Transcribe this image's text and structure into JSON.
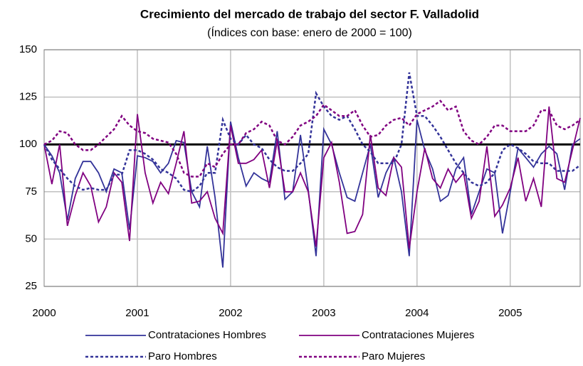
{
  "chart_data": {
    "type": "line",
    "title": "Crecimiento del mercado de trabajo del sector F. Valladolid",
    "subtitle": "(Índices con base: enero de 2000 = 100)",
    "categories": [
      "2000",
      null,
      null,
      null,
      null,
      null,
      null,
      null,
      null,
      null,
      null,
      null,
      "2001",
      null,
      null,
      null,
      null,
      null,
      null,
      null,
      null,
      null,
      null,
      null,
      "2002",
      null,
      null,
      null,
      null,
      null,
      null,
      null,
      null,
      null,
      null,
      null,
      "2003",
      null,
      null,
      null,
      null,
      null,
      null,
      null,
      null,
      null,
      null,
      null,
      "2004",
      null,
      null,
      null,
      null,
      null,
      null,
      null,
      null,
      null,
      null,
      null,
      "2005",
      null,
      null,
      null,
      null,
      null,
      null,
      null,
      null,
      null
    ],
    "series": [
      {
        "name": "Contrataciones Hombres",
        "color": "#333399",
        "dash": "solid",
        "values": [
          100,
          94,
          85,
          60,
          82,
          91,
          91,
          85,
          75,
          87,
          85,
          55,
          94,
          93,
          91,
          85,
          90,
          102,
          101,
          75,
          67,
          99,
          72,
          35,
          112,
          93,
          78,
          85,
          82,
          80,
          107,
          71,
          75,
          105,
          76,
          41,
          108,
          100,
          85,
          72,
          70,
          85,
          100,
          72,
          85,
          93,
          75,
          41,
          113,
          97,
          87,
          70,
          73,
          87,
          93,
          63,
          75,
          87,
          85,
          53,
          75,
          98,
          93,
          88,
          95,
          99,
          95,
          76,
          100,
          103
        ]
      },
      {
        "name": "Contrataciones Mujeres",
        "color": "#800080",
        "dash": "solid",
        "values": [
          100,
          79,
          100,
          57,
          73,
          85,
          78,
          59,
          67,
          85,
          80,
          49,
          116,
          85,
          69,
          80,
          74,
          90,
          107,
          69,
          70,
          75,
          61,
          53,
          110,
          90,
          90,
          92,
          97,
          77,
          102,
          75,
          75,
          85,
          75,
          46,
          93,
          101,
          80,
          53,
          54,
          63,
          105,
          77,
          73,
          93,
          88,
          45,
          75,
          98,
          82,
          77,
          87,
          80,
          85,
          61,
          70,
          99,
          62,
          68,
          77,
          93,
          70,
          82,
          67,
          120,
          82,
          80,
          97,
          114
        ]
      },
      {
        "name": "Paro Hombres",
        "color": "#333399",
        "dash": "dotted",
        "values": [
          100,
          92,
          87,
          82,
          78,
          76,
          77,
          76,
          76,
          84,
          84,
          97,
          97,
          95,
          92,
          87,
          85,
          82,
          76,
          75,
          78,
          85,
          85,
          113,
          103,
          100,
          105,
          100,
          98,
          92,
          88,
          86,
          86,
          90,
          95,
          127,
          120,
          115,
          113,
          115,
          108,
          100,
          96,
          90,
          90,
          90,
          100,
          138,
          115,
          115,
          110,
          104,
          97,
          90,
          85,
          80,
          78,
          80,
          85,
          97,
          100,
          98,
          95,
          91,
          90,
          90,
          86,
          86,
          86,
          89
        ]
      },
      {
        "name": "Paro Mujeres",
        "color": "#800080",
        "dash": "dotted",
        "values": [
          100,
          102,
          107,
          106,
          100,
          97,
          97,
          100,
          104,
          108,
          115,
          110,
          107,
          106,
          103,
          102,
          101,
          95,
          85,
          83,
          83,
          90,
          88,
          95,
          100,
          100,
          106,
          108,
          112,
          110,
          102,
          100,
          104,
          110,
          112,
          115,
          121,
          118,
          115,
          115,
          118,
          110,
          104,
          105,
          110,
          113,
          114,
          110,
          116,
          118,
          120,
          123,
          118,
          120,
          107,
          102,
          100,
          104,
          110,
          110,
          107,
          107,
          107,
          110,
          118,
          118,
          110,
          108,
          110,
          113
        ]
      }
    ],
    "ylim": [
      25,
      150
    ],
    "yticks": [
      25,
      50,
      75,
      100,
      125,
      150
    ],
    "grid": true,
    "hline": 100,
    "legend": "bottom"
  }
}
